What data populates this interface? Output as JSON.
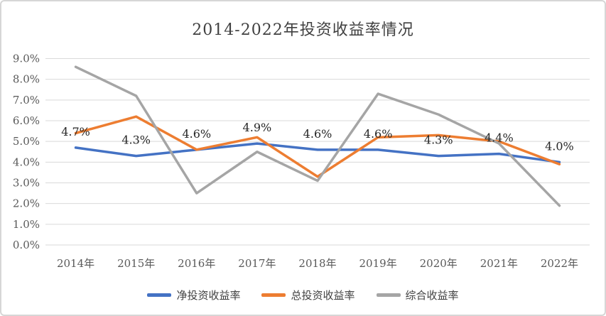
{
  "title": "2014-2022年投资收益率情况",
  "chart_data": {
    "type": "line",
    "title": "2014-2022年投资收益率情况",
    "categories": [
      "2014年",
      "2015年",
      "2016年",
      "2017年",
      "2018年",
      "2019年",
      "2020年",
      "2021年",
      "2022年"
    ],
    "series": [
      {
        "name": "净投资收益率",
        "color": "#4472C4",
        "values": [
          4.7,
          4.3,
          4.6,
          4.9,
          4.6,
          4.6,
          4.3,
          4.4,
          4.0
        ],
        "data_labels": [
          "4.7%",
          "4.3%",
          "4.6%",
          "4.9%",
          "4.6%",
          "4.6%",
          "4.3%",
          "4.4%",
          "4.0%"
        ]
      },
      {
        "name": "总投资收益率",
        "color": "#ED7D31",
        "values": [
          5.4,
          6.2,
          4.6,
          5.2,
          3.3,
          5.2,
          5.3,
          5.0,
          3.9
        ],
        "data_labels": null
      },
      {
        "name": "综合收益率",
        "color": "#A5A5A5",
        "values": [
          8.6,
          7.2,
          2.5,
          4.5,
          3.1,
          7.3,
          6.3,
          4.9,
          1.9
        ],
        "data_labels": null
      }
    ],
    "ylim": [
      0,
      9
    ],
    "ytick_step": 1,
    "ytick_labels": [
      "0.0%",
      "1.0%",
      "2.0%",
      "3.0%",
      "4.0%",
      "5.0%",
      "6.0%",
      "7.0%",
      "8.0%",
      "9.0%"
    ],
    "grid": "horizontal",
    "gridline_color": "#D9D9D9",
    "axis_label_color": "#595959",
    "data_label_color": "#262626",
    "legend_position": "bottom"
  }
}
